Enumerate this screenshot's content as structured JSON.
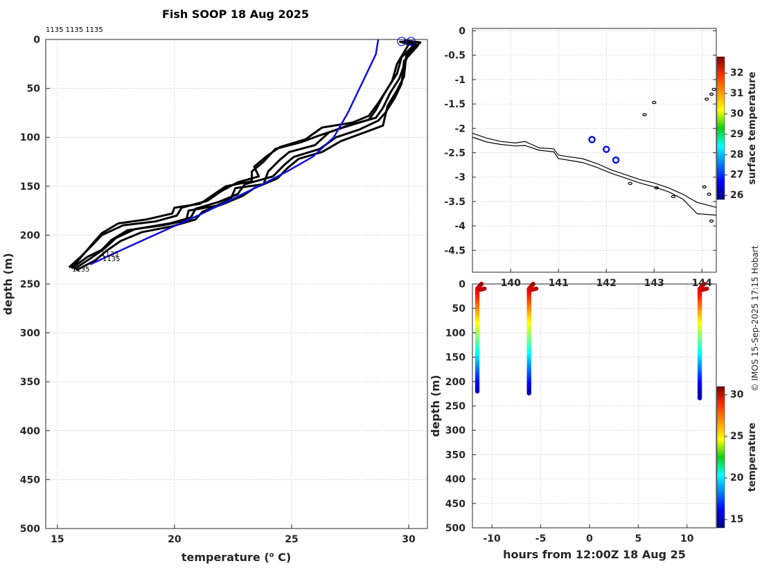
{
  "page": {
    "credit": "© IMOS 15-Sep-2025 17:15 Hobart"
  },
  "chart_data": [
    {
      "id": "profiles",
      "type": "line",
      "title": "Fish SOOP 18 Aug 2025",
      "xlabel": "temperature (",
      "xlabel_sup": "o",
      "xlabel_tail": " C)",
      "ylabel": "depth (m)",
      "xlim": [
        14.5,
        30.8
      ],
      "ylim": [
        500,
        0
      ],
      "xticks": [
        15,
        20,
        25,
        30
      ],
      "yticks": [
        0,
        50,
        100,
        150,
        200,
        250,
        300,
        350,
        400,
        450,
        500
      ],
      "grid": true,
      "top_labels": "1135 1135 1135",
      "bottom_labels": [
        "1135",
        "1135",
        "1135"
      ],
      "surface_markers": [
        29.7,
        30.1
      ],
      "climatology": {
        "name": "climatology",
        "color": "#1010dd",
        "points": [
          [
            28.7,
            0
          ],
          [
            28.6,
            15
          ],
          [
            28.3,
            30
          ],
          [
            27.9,
            50
          ],
          [
            27.4,
            75
          ],
          [
            26.8,
            100
          ],
          [
            25.9,
            120
          ],
          [
            24.8,
            135
          ],
          [
            23.6,
            150
          ],
          [
            22.3,
            165
          ],
          [
            21.0,
            180
          ],
          [
            19.6,
            195
          ],
          [
            18.4,
            208
          ],
          [
            17.3,
            220
          ],
          [
            16.4,
            230
          ]
        ]
      },
      "series": [
        {
          "name": "profile-1",
          "points": [
            [
              29.9,
              2
            ],
            [
              30.2,
              5
            ],
            [
              29.9,
              20
            ],
            [
              29.6,
              40
            ],
            [
              29.2,
              55
            ],
            [
              28.9,
              70
            ],
            [
              28.6,
              80
            ],
            [
              27.4,
              88
            ],
            [
              26.6,
              95
            ],
            [
              26.0,
              108
            ],
            [
              24.9,
              115
            ],
            [
              24.5,
              123
            ],
            [
              24.0,
              135
            ],
            [
              23.8,
              148
            ],
            [
              22.6,
              152
            ],
            [
              22.4,
              163
            ],
            [
              21.8,
              170
            ],
            [
              20.6,
              175
            ],
            [
              20.5,
              185
            ],
            [
              19.5,
              190
            ],
            [
              18.0,
              195
            ],
            [
              17.3,
              205
            ],
            [
              16.9,
              215
            ],
            [
              16.3,
              222
            ],
            [
              15.6,
              234
            ]
          ]
        },
        {
          "name": "profile-2",
          "points": [
            [
              29.7,
              2
            ],
            [
              30.3,
              4
            ],
            [
              29.7,
              18
            ],
            [
              29.5,
              35
            ],
            [
              29.1,
              50
            ],
            [
              28.7,
              65
            ],
            [
              28.3,
              78
            ],
            [
              27.6,
              85
            ],
            [
              26.3,
              90
            ],
            [
              25.6,
              102
            ],
            [
              24.5,
              110
            ],
            [
              23.9,
              120
            ],
            [
              23.4,
              130
            ],
            [
              23.6,
              140
            ],
            [
              22.7,
              146
            ],
            [
              22.0,
              155
            ],
            [
              21.4,
              165
            ],
            [
              20.3,
              172
            ],
            [
              20.1,
              180
            ],
            [
              19.2,
              186
            ],
            [
              17.8,
              190
            ],
            [
              16.9,
              200
            ],
            [
              16.5,
              210
            ],
            [
              16.0,
              222
            ],
            [
              15.5,
              233
            ]
          ]
        },
        {
          "name": "profile-3",
          "points": [
            [
              29.8,
              3
            ],
            [
              30.4,
              6
            ],
            [
              29.8,
              22
            ],
            [
              29.7,
              45
            ],
            [
              29.4,
              60
            ],
            [
              29.0,
              75
            ],
            [
              28.7,
              83
            ],
            [
              27.9,
              92
            ],
            [
              26.9,
              100
            ],
            [
              26.2,
              112
            ],
            [
              25.1,
              120
            ],
            [
              24.7,
              128
            ],
            [
              24.2,
              140
            ],
            [
              23.0,
              148
            ],
            [
              22.7,
              158
            ],
            [
              21.9,
              166
            ],
            [
              20.9,
              173
            ],
            [
              20.7,
              182
            ],
            [
              19.8,
              188
            ],
            [
              18.3,
              194
            ],
            [
              17.5,
              203
            ],
            [
              17.0,
              214
            ],
            [
              16.4,
              224
            ],
            [
              15.7,
              235
            ]
          ]
        },
        {
          "name": "profile-4",
          "points": [
            [
              29.6,
              2
            ],
            [
              30.0,
              5
            ],
            [
              29.5,
              25
            ],
            [
              29.3,
              42
            ],
            [
              28.9,
              58
            ],
            [
              28.6,
              72
            ],
            [
              28.3,
              82
            ],
            [
              27.2,
              90
            ],
            [
              26.2,
              98
            ],
            [
              25.4,
              105
            ],
            [
              24.3,
              112
            ],
            [
              23.8,
              125
            ],
            [
              23.3,
              135
            ],
            [
              23.3,
              145
            ],
            [
              22.2,
              150
            ],
            [
              21.7,
              158
            ],
            [
              21.1,
              168
            ],
            [
              20.0,
              172
            ],
            [
              19.9,
              178
            ],
            [
              18.8,
              184
            ],
            [
              17.6,
              188
            ],
            [
              16.9,
              198
            ],
            [
              16.6,
              206
            ],
            [
              16.1,
              220
            ],
            [
              15.6,
              234
            ]
          ]
        },
        {
          "name": "profile-5",
          "points": [
            [
              29.8,
              1
            ],
            [
              30.5,
              3
            ],
            [
              29.9,
              15
            ],
            [
              29.8,
              38
            ],
            [
              29.5,
              52
            ],
            [
              29.1,
              68
            ],
            [
              28.9,
              88
            ],
            [
              28.0,
              96
            ],
            [
              27.1,
              104
            ],
            [
              26.3,
              115
            ],
            [
              25.3,
              122
            ],
            [
              24.8,
              132
            ],
            [
              24.4,
              142
            ],
            [
              23.4,
              152
            ],
            [
              22.9,
              160
            ],
            [
              22.1,
              168
            ],
            [
              21.2,
              176
            ],
            [
              20.9,
              184
            ],
            [
              19.9,
              191
            ],
            [
              18.6,
              197
            ],
            [
              17.7,
              206
            ],
            [
              17.1,
              216
            ],
            [
              16.6,
              226
            ],
            [
              15.8,
              236
            ]
          ]
        }
      ]
    },
    {
      "id": "map",
      "type": "scatter",
      "title": "",
      "xlabel": "",
      "ylabel": "",
      "xlim": [
        139.2,
        144.3
      ],
      "ylim": [
        -4.95,
        0.05
      ],
      "xticks": [
        140,
        141,
        142,
        143,
        144
      ],
      "xticklabels": [
        "140",
        "141",
        "142",
        "143",
        "144"
      ],
      "yticks": [
        0,
        -0.5,
        -1,
        -1.5,
        -2,
        -2.5,
        -3,
        -3.5,
        -4,
        -4.5
      ],
      "yticklabels": [
        "0",
        "-0.5",
        "-1",
        "-1.5",
        "-2",
        "-2.5",
        "-3",
        "-3.5",
        "-4",
        "-4.5"
      ],
      "grid": true,
      "stations": [
        [
          141.7,
          -2.23
        ],
        [
          142.0,
          -2.43
        ],
        [
          142.2,
          -2.65
        ]
      ],
      "station_color": "#1010dd",
      "coast_upper": [
        [
          139.2,
          -2.1
        ],
        [
          139.5,
          -2.2
        ],
        [
          139.8,
          -2.27
        ],
        [
          140.1,
          -2.3
        ],
        [
          140.3,
          -2.27
        ],
        [
          140.6,
          -2.4
        ],
        [
          140.9,
          -2.42
        ],
        [
          141.0,
          -2.55
        ],
        [
          141.2,
          -2.58
        ],
        [
          141.5,
          -2.62
        ],
        [
          141.8,
          -2.72
        ],
        [
          142.1,
          -2.85
        ],
        [
          142.4,
          -2.95
        ],
        [
          142.7,
          -3.05
        ],
        [
          143.0,
          -3.12
        ],
        [
          143.3,
          -3.22
        ],
        [
          143.6,
          -3.35
        ],
        [
          143.9,
          -3.52
        ],
        [
          144.3,
          -3.62
        ]
      ],
      "coast_lower": [
        [
          139.2,
          -2.18
        ],
        [
          139.5,
          -2.28
        ],
        [
          139.8,
          -2.33
        ],
        [
          140.1,
          -2.36
        ],
        [
          140.3,
          -2.35
        ],
        [
          140.6,
          -2.45
        ],
        [
          140.9,
          -2.48
        ],
        [
          141.0,
          -2.62
        ],
        [
          141.2,
          -2.65
        ],
        [
          141.5,
          -2.7
        ],
        [
          141.8,
          -2.8
        ],
        [
          142.1,
          -2.92
        ],
        [
          142.4,
          -3.02
        ],
        [
          142.7,
          -3.12
        ],
        [
          143.0,
          -3.2
        ],
        [
          143.3,
          -3.3
        ],
        [
          143.6,
          -3.45
        ],
        [
          143.9,
          -3.75
        ],
        [
          144.3,
          -3.78
        ]
      ],
      "islands": [
        [
          144.1,
          -1.4
        ],
        [
          144.2,
          -1.3
        ],
        [
          144.25,
          -1.2
        ],
        [
          143.0,
          -1.47
        ],
        [
          142.8,
          -1.72
        ],
        [
          143.05,
          -3.22
        ],
        [
          143.4,
          -3.4
        ],
        [
          144.05,
          -3.2
        ],
        [
          144.15,
          -3.35
        ],
        [
          142.5,
          -3.13
        ],
        [
          144.2,
          -3.9
        ]
      ],
      "colorbar": {
        "label": "surface temperature",
        "min": 25.8,
        "max": 32.8,
        "ticks": [
          26,
          27,
          28,
          29,
          30,
          31,
          32
        ]
      }
    },
    {
      "id": "section",
      "type": "scatter",
      "title": "",
      "xlabel": "hours from 12:00Z 18 Aug 25",
      "ylabel": "depth (m)",
      "xlim": [
        -12,
        13
      ],
      "ylim": [
        500,
        0
      ],
      "xticks": [
        -10,
        -5,
        0,
        5,
        10
      ],
      "yticks": [
        0,
        50,
        100,
        150,
        200,
        250,
        300,
        350,
        400,
        450,
        500
      ],
      "casts": [
        {
          "time": -11.5,
          "max_depth": 220
        },
        {
          "time": -6.2,
          "max_depth": 225
        },
        {
          "time": 11.3,
          "max_depth": 234
        }
      ],
      "colorbar": {
        "label": "temperature",
        "min": 14,
        "max": 31,
        "ticks": [
          15,
          20,
          25,
          30
        ]
      }
    }
  ]
}
